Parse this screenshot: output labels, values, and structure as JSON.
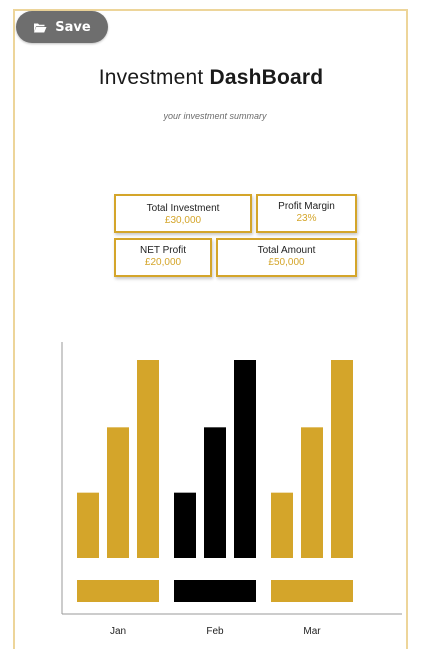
{
  "toolbar": {
    "save_label": "Save",
    "save_icon": "folder-open-icon"
  },
  "header": {
    "title_light": "Investment",
    "title_bold": "DashBoard",
    "subtitle": "your investment summary"
  },
  "cards": {
    "total_investment": {
      "label": "Total Investment",
      "value": "£30,000"
    },
    "profit_margin": {
      "label": "Profit Margin",
      "value": "23%"
    },
    "net_profit": {
      "label": "NET Profit",
      "value": "£20,000"
    },
    "total_amount": {
      "label": "Total Amount",
      "value": "£50,000"
    }
  },
  "colors": {
    "accent": "#d4a52a",
    "border": "#edd59a",
    "dark": "#000000",
    "save_button": "#6e6e6e"
  },
  "chart_data": {
    "type": "bar",
    "categories": [
      "Jan",
      "Feb",
      "Mar"
    ],
    "category_colors": [
      "#d4a52a",
      "#000000",
      "#d4a52a"
    ],
    "series": [
      {
        "values": [
          33,
          33,
          33
        ]
      },
      {
        "values": [
          66,
          66,
          66
        ]
      },
      {
        "values": [
          100,
          100,
          100
        ]
      }
    ],
    "baseline_bar": {
      "values": [
        100,
        100,
        100
      ]
    },
    "grid": false,
    "legend": "none",
    "xlabel": "",
    "ylabel": ""
  }
}
